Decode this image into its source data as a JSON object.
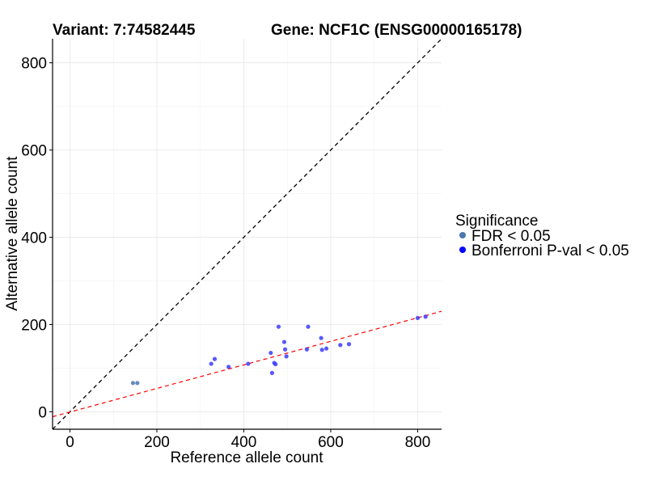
{
  "chart_data": {
    "type": "scatter",
    "title_left": "Variant: 7:74582445",
    "title_right": "Gene: NCF1C (ENSG00000165178)",
    "xlabel": "Reference allele count",
    "ylabel": "Alternative allele count",
    "xlim": [
      -40,
      855
    ],
    "ylim": [
      -40,
      855
    ],
    "xticks": [
      0,
      200,
      400,
      600,
      800
    ],
    "yticks": [
      0,
      200,
      400,
      600,
      800
    ],
    "grid": true,
    "legend": {
      "title": "Significance",
      "position": "right",
      "entries": [
        {
          "label": "FDR < 0.05",
          "color": "#4a78b0"
        },
        {
          "label": "Bonferroni P-val < 0.05",
          "color": "#0000ff"
        }
      ]
    },
    "identity_line": {
      "slope": 1,
      "intercept": 0,
      "color": "#000000",
      "style": "dashed"
    },
    "fit_line": {
      "slope": 0.27,
      "intercept": -0.5,
      "color": "#ff0000",
      "style": "dashed"
    },
    "series": [
      {
        "name": "FDR < 0.05",
        "color": "#4a78b0",
        "points": [
          [
            145,
            66
          ],
          [
            155,
            66
          ]
        ]
      },
      {
        "name": "Bonferroni P-val < 0.05",
        "color": "#3b3bff",
        "points": [
          [
            325,
            110
          ],
          [
            333,
            121
          ],
          [
            365,
            103
          ],
          [
            410,
            110
          ],
          [
            462,
            135
          ],
          [
            465,
            89
          ],
          [
            470,
            112
          ],
          [
            473,
            109
          ],
          [
            480,
            195
          ],
          [
            493,
            160
          ],
          [
            495,
            143
          ],
          [
            498,
            127
          ],
          [
            545,
            143
          ],
          [
            548,
            195
          ],
          [
            578,
            169
          ],
          [
            580,
            142
          ],
          [
            590,
            145
          ],
          [
            622,
            153
          ],
          [
            642,
            155
          ],
          [
            800,
            215
          ],
          [
            818,
            218
          ]
        ]
      }
    ]
  }
}
